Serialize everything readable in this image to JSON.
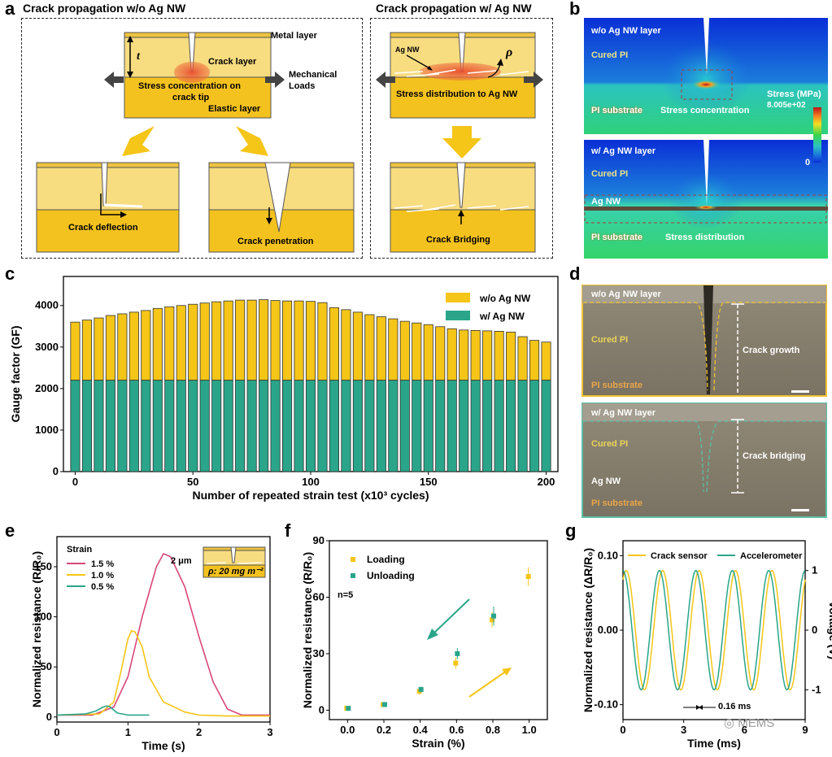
{
  "panel_a": {
    "label": "a",
    "title_left": "Crack propagation w/o Ag NW",
    "title_right": "Crack propagation w/ Ag NW",
    "metal_layer": "Metal layer",
    "t": "t",
    "crack_layer": "Crack layer",
    "stress_conc": "Stress concentration on",
    "stress_conc2": "crack tip",
    "elastic_layer": "Elastic layer",
    "mech_loads": "Mechanical",
    "mech_loads2": "Loads",
    "crack_deflection": "Crack deflection",
    "crack_penetration": "Crack penetration",
    "ag_nw": "Ag NW",
    "rho": "ρ",
    "stress_dist_ag": "Stress distribution to Ag NW",
    "crack_bridging": "Crack Bridging"
  },
  "panel_b": {
    "label": "b",
    "top_layer": "w/o Ag NW layer",
    "cured_pi": "Cured PI",
    "pi_substrate": "PI substrate",
    "stress_concentration": "Stress concentration",
    "stress_unit": "Stress (MPa)",
    "stress_max": "8.005e+02",
    "stress_min": "0",
    "bottom_layer": "w/ Ag NW layer",
    "cured_pi2": "Cured PI",
    "ag_nw": "Ag NW",
    "pi_substrate2": "PI substrate",
    "stress_distribution": "Stress distribution"
  },
  "panel_c": {
    "label": "c"
  },
  "panel_d": {
    "label": "d",
    "top_layer": "w/o Ag NW layer",
    "cured_pi": "Cured PI",
    "crack_growth": "Crack growth",
    "pi_substrate": "PI substrate",
    "bottom_layer": "w/ Ag NW layer",
    "cured_pi2": "Cured PI",
    "crack_bridging": "Crack bridging",
    "ag_nw": "Ag NW",
    "pi_substrate2": "PI substrate"
  },
  "panel_e": {
    "label": "e",
    "inset_dim": "2 μm",
    "inset_rho": "ρ: 20 mg m⁻²"
  },
  "panel_f": {
    "label": "f"
  },
  "panel_g": {
    "label": "g",
    "period": "0.16 ms",
    "watermark": "MEMS"
  },
  "chart_data": [
    {
      "id": "c",
      "type": "bar",
      "xlabel": "Number of repeated strain test (x10³ cycles)",
      "ylabel": "Gauge factor (GF)",
      "xlim": [
        -5,
        205
      ],
      "ylim": [
        0,
        4700
      ],
      "xticks": [
        0,
        50,
        100,
        150,
        200
      ],
      "yticks": [
        0,
        1000,
        2000,
        3000,
        4000
      ],
      "legend_position": "top-right",
      "x": [
        0,
        5,
        10,
        15,
        20,
        25,
        30,
        35,
        40,
        45,
        50,
        55,
        60,
        65,
        70,
        75,
        80,
        85,
        90,
        95,
        100,
        105,
        110,
        115,
        120,
        125,
        130,
        135,
        140,
        145,
        150,
        155,
        160,
        165,
        170,
        175,
        180,
        185,
        190,
        195,
        200
      ],
      "series": [
        {
          "name": "w/o Ag NW",
          "color": "#f5c518",
          "values": [
            3600,
            3650,
            3700,
            3760,
            3800,
            3840,
            3880,
            3930,
            3970,
            4000,
            4030,
            4060,
            4090,
            4110,
            4130,
            4130,
            4140,
            4120,
            4110,
            4110,
            4100,
            4070,
            3950,
            3900,
            3840,
            3780,
            3730,
            3680,
            3620,
            3580,
            3540,
            3490,
            3440,
            3410,
            3400,
            3390,
            3380,
            3360,
            3250,
            3160,
            3120
          ]
        },
        {
          "name": "w/ Ag NW",
          "color": "#2aa58a",
          "values": [
            2200,
            2200,
            2200,
            2200,
            2200,
            2200,
            2200,
            2200,
            2200,
            2200,
            2200,
            2200,
            2200,
            2200,
            2200,
            2200,
            2200,
            2200,
            2200,
            2200,
            2200,
            2200,
            2200,
            2200,
            2200,
            2200,
            2200,
            2200,
            2200,
            2200,
            2200,
            2200,
            2200,
            2200,
            2200,
            2200,
            2200,
            2200,
            2200,
            2200,
            2200
          ]
        }
      ]
    },
    {
      "id": "e",
      "type": "line",
      "xlabel": "Time (s)",
      "ylabel": "Normalized resistance (R/R₀)",
      "xlim": [
        0,
        3
      ],
      "ylim": [
        -5,
        180
      ],
      "xticks": [
        0,
        1,
        2,
        3
      ],
      "yticks": [
        0,
        50,
        100,
        150
      ],
      "legend_title": "Strain",
      "legend_position": "top-left",
      "series": [
        {
          "name": "1.5 %",
          "color": "#d9477a",
          "x": [
            0,
            0.5,
            0.8,
            1.0,
            1.2,
            1.4,
            1.5,
            1.6,
            1.8,
            2.0,
            2.2,
            2.4,
            2.6,
            3.0
          ],
          "y": [
            2,
            2,
            10,
            40,
            100,
            150,
            163,
            160,
            130,
            80,
            35,
            8,
            2,
            2
          ]
        },
        {
          "name": "1.0 %",
          "color": "#f5c518",
          "x": [
            0,
            0.6,
            0.8,
            0.9,
            1.0,
            1.05,
            1.1,
            1.2,
            1.3,
            1.5,
            1.8,
            2.0,
            2.4,
            3.0
          ],
          "y": [
            2,
            3,
            15,
            45,
            78,
            86,
            85,
            70,
            40,
            15,
            5,
            2,
            1,
            1
          ]
        },
        {
          "name": "0.5 %",
          "color": "#2aa58a",
          "x": [
            0,
            0.4,
            0.55,
            0.65,
            0.7,
            0.75,
            0.85,
            1.0,
            1.3
          ],
          "y": [
            2,
            3,
            6,
            10,
            11,
            10,
            4,
            2,
            2
          ]
        }
      ]
    },
    {
      "id": "f",
      "type": "scatter",
      "xlabel": "Strain (%)",
      "ylabel": "Normalized resistance (R/R₀)",
      "xlim": [
        -0.1,
        1.1
      ],
      "ylim": [
        -5,
        90
      ],
      "xticks": [
        0.0,
        0.2,
        0.4,
        0.6,
        0.8,
        1.0
      ],
      "yticks": [
        0,
        30,
        60,
        90
      ],
      "annotation": "n=5",
      "legend_position": "top-left",
      "series": [
        {
          "name": "Loading",
          "color": "#f5c518",
          "x": [
            0,
            0.2,
            0.4,
            0.6,
            0.8,
            1.0
          ],
          "y": [
            1,
            3,
            10,
            25,
            48,
            71
          ],
          "err": [
            0.5,
            0.8,
            1.5,
            3,
            4,
            5
          ]
        },
        {
          "name": "Unloading",
          "color": "#2aa58a",
          "x": [
            0,
            0.2,
            0.4,
            0.6,
            0.8
          ],
          "y": [
            1,
            3,
            11,
            30,
            50
          ],
          "err": [
            0.5,
            0.8,
            1.5,
            3,
            5
          ]
        }
      ]
    },
    {
      "id": "g",
      "type": "line",
      "xlabel": "Time (ms)",
      "ylabel": "Normalized resistance (ΔR/R₀)",
      "ylabel_right": "Voltage (V)",
      "xlim": [
        0,
        9
      ],
      "ylim": [
        -0.12,
        0.12
      ],
      "xticks": [
        0,
        3,
        6,
        9
      ],
      "yticks": [
        -0.1,
        0.0,
        0.1
      ],
      "yticks_right": [
        -1,
        0,
        1
      ],
      "legend_position": "top",
      "series": [
        {
          "name": "Crack sensor",
          "color": "#f5c518",
          "period_ms": 1.8,
          "amplitude": 0.08,
          "phase_ms": 0.16
        },
        {
          "name": "Accelerometer",
          "color": "#2aa58a",
          "period_ms": 1.8,
          "amplitude": 0.08,
          "phase_ms": 0.0
        }
      ]
    }
  ]
}
